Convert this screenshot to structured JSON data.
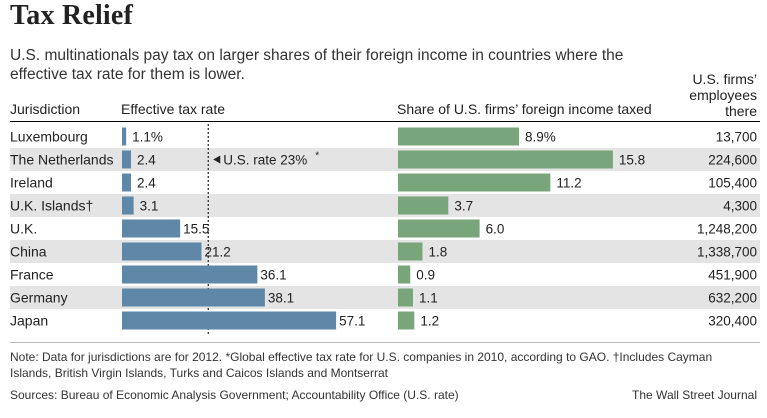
{
  "title": "Tax Relief",
  "subtitle": "U.S. multinationals pay tax on larger shares of their foreign income in countries where the effective tax rate for them is lower.",
  "headers": {
    "jurisdiction": "Jurisdiction",
    "rate": "Effective tax rate",
    "share": "Share of U.S. firms’ foreign income taxed",
    "employees_line1": "U.S. firms’",
    "employees_line2": "employees",
    "employees_line3": "there"
  },
  "reference_label": "U.S. rate 23%",
  "reference_marker": "*",
  "footnote": "Note: Data for jurisdictions are for 2012.  *Global effective tax rate for U.S. companies in 2010, according to GAO.  †Includes Cayman Islands, British Virgin Islands, Turks and Caicos Islands and Montserrat",
  "sources": "Sources: Bureau of Economic Analysis Government; Accountability Office (U.S. rate)",
  "credit": "The Wall Street Journal",
  "colors": {
    "rate_bar": "#5e87a8",
    "share_bar": "#79a57a",
    "band": "#e4e4e4"
  },
  "chart_data": {
    "type": "bar",
    "orientation": "horizontal",
    "categories": [
      "Luxembourg",
      "The Netherlands",
      "Ireland",
      "U.K. Islands",
      "U.K.",
      "China",
      "France",
      "Germany",
      "Japan"
    ],
    "category_marks": [
      "",
      "",
      "",
      "†",
      "",
      "",
      "",
      "",
      ""
    ],
    "series": [
      {
        "name": "Effective tax rate",
        "values": [
          1.1,
          2.4,
          2.4,
          3.1,
          15.5,
          21.2,
          36.1,
          38.1,
          57.1
        ],
        "labels": [
          "1.1%",
          "2.4",
          "2.4",
          "3.1",
          "15.5",
          "21.2",
          "36.1",
          "38.1",
          "57.1"
        ],
        "reference_line": 23
      },
      {
        "name": "Share of U.S. firms’ foreign income taxed",
        "values": [
          8.9,
          15.8,
          11.2,
          3.7,
          6.0,
          1.8,
          0.9,
          1.1,
          1.2
        ],
        "labels": [
          "8.9%",
          "15.8",
          "11.2",
          "3.7",
          "6.0",
          "1.8",
          "0.9",
          "1.1",
          "1.2"
        ]
      }
    ],
    "employees": [
      "13,700",
      "224,600",
      "105,400",
      "4,300",
      "1,248,200",
      "1,338,700",
      "451,900",
      "632,200",
      "320,400"
    ]
  }
}
